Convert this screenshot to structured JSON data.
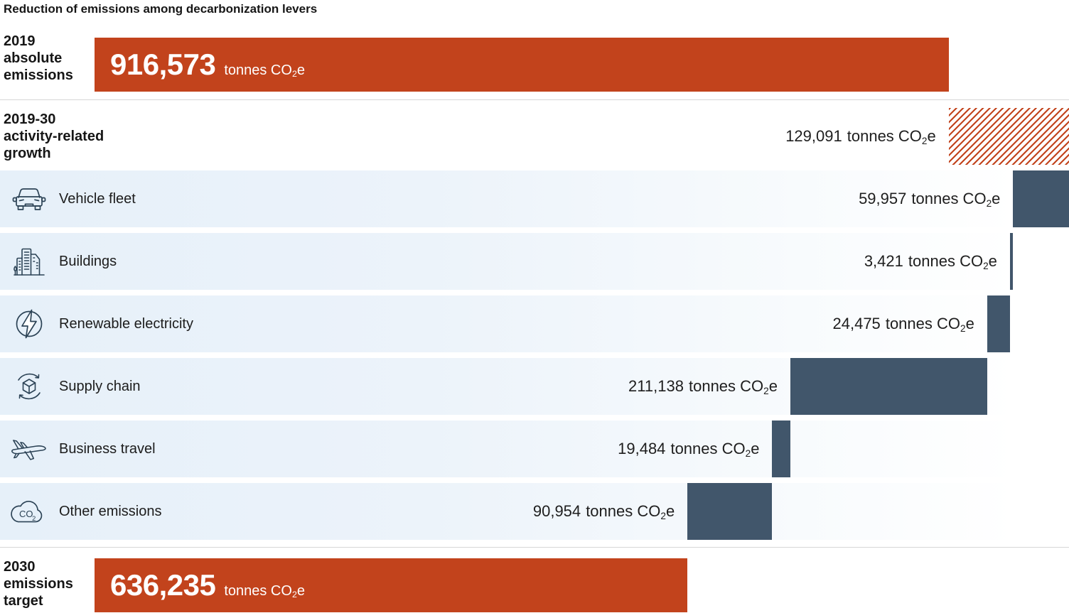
{
  "title": "Reduction of emissions among decarbonization levers",
  "units": {
    "prefix": "tonnes CO",
    "sub": "2",
    "suffix": "e"
  },
  "colors": {
    "accent_orange": "#C2431C",
    "bar_navy": "#41566B",
    "row_background_blue": "#E6F0F9",
    "icon_stroke": "#2C4356",
    "divider": "#D6D6D6"
  },
  "icon_text": {
    "co2_main": "CO",
    "co2_sub": "2"
  },
  "chart_data": {
    "type": "bar",
    "subtype": "waterfall-horizontal",
    "unit": "tonnes CO2e",
    "layout": {
      "orientation": "horizontal",
      "grid": false,
      "legend": false,
      "growth_bar_style": "red-diagonal-hatch"
    },
    "start": {
      "label": "2019 absolute emissions",
      "label_lines": [
        "2019",
        "absolute",
        "emissions"
      ],
      "value": 916573,
      "value_text": "916,573"
    },
    "growth": {
      "label": "2019-30 activity-related growth",
      "label_lines": [
        "2019-30",
        "activity-related",
        "growth"
      ],
      "value": 129091,
      "value_text": "129,091"
    },
    "levers": [
      {
        "label": "Vehicle fleet",
        "icon": "car-icon",
        "value": 59957,
        "value_text": "59,957"
      },
      {
        "label": "Buildings",
        "icon": "buildings-icon",
        "value": 3421,
        "value_text": "3,421"
      },
      {
        "label": "Renewable electricity",
        "icon": "lightning-icon",
        "value": 24475,
        "value_text": "24,475"
      },
      {
        "label": "Supply chain",
        "icon": "cube-cycle-icon",
        "value": 211138,
        "value_text": "211,138"
      },
      {
        "label": "Business travel",
        "icon": "airplane-icon",
        "value": 19484,
        "value_text": "19,484"
      },
      {
        "label": "Other emissions",
        "icon": "co2-cloud-icon",
        "value": 90954,
        "value_text": "90,954"
      }
    ],
    "target": {
      "label": "2030 emissions target",
      "label_lines": [
        "2030",
        "emissions",
        "target"
      ],
      "value": 636235,
      "value_text": "636,235"
    }
  }
}
